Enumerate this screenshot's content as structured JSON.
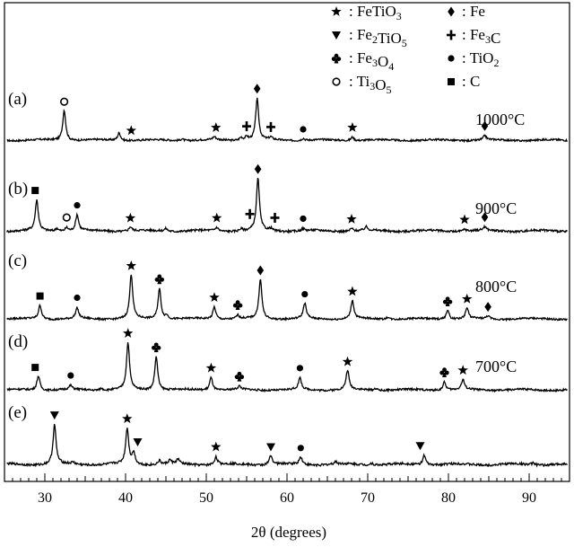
{
  "chart_data": {
    "type": "line",
    "xlabel": "2θ (degrees)",
    "xlim": [
      25,
      95
    ],
    "xticks": [
      30,
      40,
      50,
      60,
      70,
      80,
      90
    ],
    "legend": {
      "placement": "top-right",
      "entries": [
        {
          "marker": "star",
          "sep": ":",
          "label": "FeTiO",
          "sub": "3",
          "suffix": ""
        },
        {
          "marker": "diamond",
          "sep": ":",
          "label": "Fe",
          "sub": "",
          "suffix": ""
        },
        {
          "marker": "triangle-down",
          "sep": ":",
          "label": "Fe",
          "sub": "2",
          "suffix": "TiO",
          "sub2": "5"
        },
        {
          "marker": "cross",
          "sep": ":",
          "label": "Fe",
          "sub": "3",
          "suffix": "C"
        },
        {
          "marker": "club",
          "sep": ":",
          "label": "Fe",
          "sub": "3",
          "suffix": "O",
          "sub2": "4"
        },
        {
          "marker": "circle",
          "sep": ":",
          "label": "TiO",
          "sub": "2",
          "suffix": ""
        },
        {
          "marker": "open-circle",
          "sep": ":",
          "label": "Ti",
          "sub": "3",
          "suffix": "O",
          "sub2": "5"
        },
        {
          "marker": "square",
          "sep": ":",
          "label": "C",
          "sub": "",
          "suffix": ""
        }
      ]
    },
    "series": [
      {
        "panel": "(a)",
        "temperature": "1000°C",
        "peaks": [
          [
            32.4,
            1.0
          ],
          [
            39.2,
            0.25
          ],
          [
            47.0,
            0.06
          ],
          [
            51.0,
            0.1
          ],
          [
            54.3,
            0.1
          ],
          [
            55.0,
            0.12
          ],
          [
            56.3,
            1.35
          ],
          [
            58.0,
            0.08
          ],
          [
            62.0,
            0.07
          ],
          [
            68.1,
            0.12
          ],
          [
            84.5,
            0.14
          ]
        ],
        "markers": [
          {
            "type": "open-circle",
            "x": 32.4
          },
          {
            "type": "star",
            "x": 40.7
          },
          {
            "type": "star",
            "x": 51.2
          },
          {
            "type": "cross",
            "x": 55.0
          },
          {
            "type": "diamond",
            "x": 56.3
          },
          {
            "type": "cross",
            "x": 58.0
          },
          {
            "type": "circle",
            "x": 62.0
          },
          {
            "type": "star",
            "x": 68.1
          },
          {
            "type": "diamond",
            "x": 84.5
          }
        ]
      },
      {
        "panel": "(b)",
        "temperature": "900°C",
        "peaks": [
          [
            29.0,
            0.85
          ],
          [
            31.5,
            0.08
          ],
          [
            32.7,
            0.1
          ],
          [
            34.0,
            0.45
          ],
          [
            40.6,
            0.12
          ],
          [
            45.0,
            0.08
          ],
          [
            51.3,
            0.1
          ],
          [
            54.3,
            0.06
          ],
          [
            56.4,
            1.45
          ],
          [
            58.0,
            0.06
          ],
          [
            62.0,
            0.06
          ],
          [
            68.0,
            0.08
          ],
          [
            69.8,
            0.1
          ],
          [
            82.0,
            0.06
          ],
          [
            84.5,
            0.1
          ]
        ],
        "markers": [
          {
            "type": "square",
            "x": 28.8
          },
          {
            "type": "open-circle",
            "x": 32.7
          },
          {
            "type": "circle",
            "x": 34.0
          },
          {
            "type": "star",
            "x": 40.6
          },
          {
            "type": "star",
            "x": 51.3
          },
          {
            "type": "cross",
            "x": 55.4
          },
          {
            "type": "diamond",
            "x": 56.4
          },
          {
            "type": "cross",
            "x": 58.5
          },
          {
            "type": "circle",
            "x": 62.0
          },
          {
            "type": "star",
            "x": 68.0
          },
          {
            "type": "star",
            "x": 82.0
          },
          {
            "type": "diamond",
            "x": 84.5
          }
        ]
      },
      {
        "panel": "(c)",
        "temperature": "800°C",
        "peaks": [
          [
            29.4,
            0.45
          ],
          [
            34.0,
            0.35
          ],
          [
            40.7,
            1.45
          ],
          [
            44.2,
            1.0
          ],
          [
            45.1,
            0.12
          ],
          [
            51.0,
            0.4
          ],
          [
            53.9,
            0.12
          ],
          [
            56.7,
            1.3
          ],
          [
            62.2,
            0.5
          ],
          [
            68.1,
            0.6
          ],
          [
            72.5,
            0.08
          ],
          [
            79.9,
            0.3
          ],
          [
            82.3,
            0.35
          ],
          [
            84.9,
            0.1
          ]
        ],
        "markers": [
          {
            "type": "square",
            "x": 29.4
          },
          {
            "type": "circle",
            "x": 34.0
          },
          {
            "type": "star",
            "x": 40.7
          },
          {
            "type": "club",
            "x": 44.2
          },
          {
            "type": "star",
            "x": 51.0
          },
          {
            "type": "club",
            "x": 53.9
          },
          {
            "type": "diamond",
            "x": 56.7
          },
          {
            "type": "circle",
            "x": 62.2
          },
          {
            "type": "star",
            "x": 68.1
          },
          {
            "type": "club",
            "x": 79.9
          },
          {
            "type": "star",
            "x": 82.3
          },
          {
            "type": "diamond",
            "x": 84.9
          }
        ]
      },
      {
        "panel": "(d)",
        "temperature": "700°C",
        "peaks": [
          [
            29.2,
            0.45
          ],
          [
            33.2,
            0.12
          ],
          [
            37.0,
            0.06
          ],
          [
            40.3,
            1.45
          ],
          [
            43.8,
            1.05
          ],
          [
            50.6,
            0.4
          ],
          [
            54.1,
            0.1
          ],
          [
            61.6,
            0.35
          ],
          [
            67.5,
            0.6
          ],
          [
            71.0,
            0.06
          ],
          [
            79.5,
            0.25
          ],
          [
            81.8,
            0.3
          ]
        ],
        "markers": [
          {
            "type": "square",
            "x": 28.8
          },
          {
            "type": "circle",
            "x": 33.2
          },
          {
            "type": "star",
            "x": 40.3
          },
          {
            "type": "club",
            "x": 43.8
          },
          {
            "type": "star",
            "x": 50.6
          },
          {
            "type": "club",
            "x": 54.1
          },
          {
            "type": "circle",
            "x": 61.6
          },
          {
            "type": "star",
            "x": 67.5
          },
          {
            "type": "club",
            "x": 79.5
          },
          {
            "type": "star",
            "x": 81.8
          }
        ]
      },
      {
        "panel": "(e)",
        "temperature": "",
        "peaks": [
          [
            31.2,
            1.05
          ],
          [
            33.5,
            0.05
          ],
          [
            40.2,
            0.95
          ],
          [
            41.0,
            0.3
          ],
          [
            44.2,
            0.1
          ],
          [
            45.5,
            0.1
          ],
          [
            46.5,
            0.12
          ],
          [
            51.2,
            0.2
          ],
          [
            58.0,
            0.25
          ],
          [
            61.7,
            0.2
          ],
          [
            66.0,
            0.06
          ],
          [
            70.5,
            0.05
          ],
          [
            77.0,
            0.25
          ],
          [
            90.5,
            0.05
          ]
        ],
        "markers": [
          {
            "type": "triangle-down",
            "x": 31.2
          },
          {
            "type": "star",
            "x": 40.2
          },
          {
            "type": "triangle-down",
            "x": 41.5
          },
          {
            "type": "star",
            "x": 51.2
          },
          {
            "type": "triangle-down",
            "x": 58.0
          },
          {
            "type": "circle",
            "x": 61.7
          },
          {
            "type": "triangle-down",
            "x": 76.5
          }
        ]
      }
    ]
  }
}
